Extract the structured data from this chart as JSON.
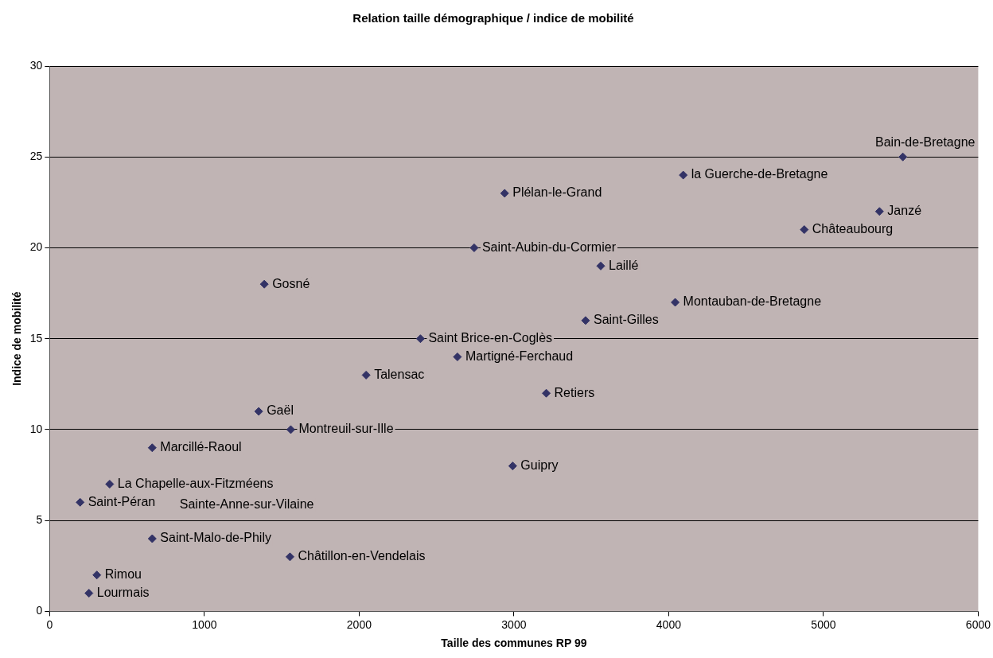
{
  "chart_data": {
    "type": "scatter",
    "title": "Relation taille démographique / indice de mobilité",
    "xlabel": "Taille des communes RP 99",
    "ylabel": "Indice de mobilité",
    "x": [
      5513,
      5362,
      4094,
      2940,
      4876,
      2743,
      3561,
      1387,
      4042,
      3463,
      2396,
      2635,
      2045,
      3209,
      1351,
      1558,
      663,
      2992,
      388,
      197,
      663,
      1553,
      305,
      254
    ],
    "values": [
      25,
      22,
      24,
      23,
      21,
      20,
      19,
      18,
      17,
      16,
      15,
      14,
      13,
      12,
      11,
      10,
      9,
      8,
      7,
      6,
      4,
      3,
      2,
      1
    ],
    "value_labels": [
      "Bain-de-Bretagne",
      "Janzé",
      "la Guerche-de-Bretagne",
      "Plélan-le-Grand",
      "Châteaubourg",
      "Saint-Aubin-du-Cormier",
      "Laillé",
      "Gosné",
      "Montauban-de-Bretagne",
      "Saint-Gilles",
      "Saint Brice-en-Coglès",
      "Martigné-Ferchaud",
      "Talensac",
      "Retiers",
      "Gaël",
      "Montreuil-sur-Ille",
      "Marcillé-Raoul",
      "Guipry",
      "La Chapelle-aux-Fitzméens",
      "Saint-Péran",
      "Saint-Malo-de-Phily",
      "Châtillon-en-Vendelais",
      "Rimou",
      "Lourmais"
    ],
    "color": "#333366",
    "marker": "diamond",
    "annotations": [
      "Sainte-Anne-sur-Vilaine"
    ],
    "xlim": [
      0,
      6000
    ],
    "xticks": [
      0,
      1000,
      2000,
      3000,
      4000,
      5000,
      6000
    ],
    "ylim": [
      0,
      30
    ],
    "yticks": [
      0,
      5,
      10,
      15,
      20,
      25,
      30
    ],
    "grid": "y",
    "legend": false
  }
}
